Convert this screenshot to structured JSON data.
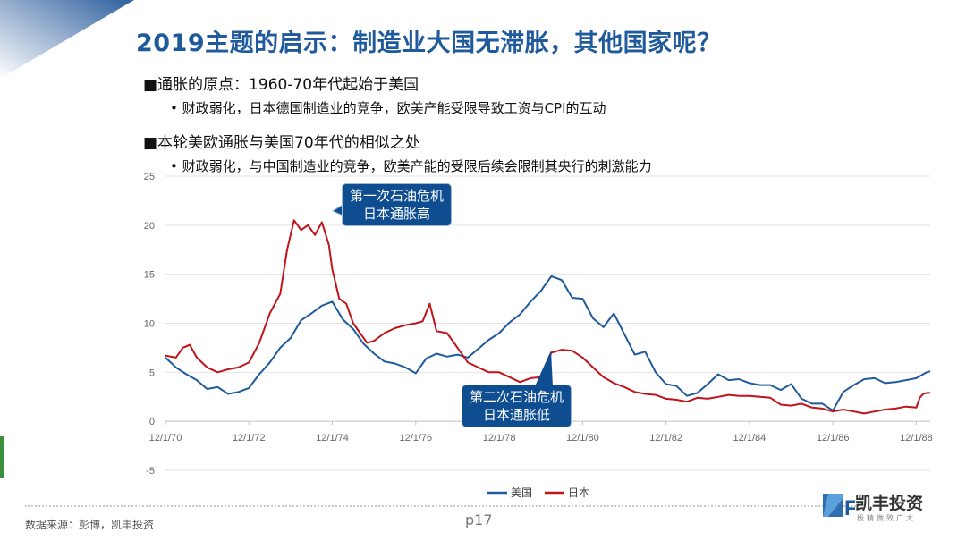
{
  "header": {
    "title": "2019主题的启示：制造业大国无滞胀，其他国家呢？"
  },
  "bullets": [
    {
      "main": "■通胀的原点：1960-70年代起始于美国",
      "sub": "• 财政弱化，日本德国制造业的竞争，欧美产能受限导致工资与CPI的互动"
    },
    {
      "main": "■本轮美欧通胀与美国70年代的相似之处",
      "sub": "• 财政弱化，与中国制造业的竞争，欧美产能的受限后续会限制其央行的刺激能力"
    }
  ],
  "callouts": {
    "first": [
      "第一次石油危机",
      "日本通胀高"
    ],
    "second": [
      "第二次石油危机",
      "日本通胀低"
    ]
  },
  "footer": {
    "source": "数据来源：彭博，凯丰投资",
    "page": "p17"
  },
  "logo": {
    "name": "凯丰投资",
    "tagline": "极精微致广大",
    "mark": "F"
  },
  "colors": {
    "title": "#1f5a9c",
    "us": "#1f5a9c",
    "japan": "#c0141b",
    "callout": "#0e4d8f"
  },
  "chart_data": {
    "type": "line",
    "ylim": [
      -5,
      25
    ],
    "yticks": [
      -5,
      0,
      5,
      10,
      15,
      20,
      25
    ],
    "xlim": [
      "1970-12",
      "1989-04"
    ],
    "xticks": [
      "12/1/70",
      "12/1/72",
      "12/1/74",
      "12/1/76",
      "12/1/78",
      "12/1/80",
      "12/1/82",
      "12/1/84",
      "12/1/86",
      "12/1/88"
    ],
    "legend_position": "bottom",
    "grid": "horizontal",
    "series": [
      {
        "name": "美国",
        "color": "#1f5a9c",
        "points": [
          [
            "1970-12",
            6.5
          ],
          [
            "1971-03",
            5.5
          ],
          [
            "1971-06",
            4.8
          ],
          [
            "1971-09",
            4.2
          ],
          [
            "1971-12",
            3.3
          ],
          [
            "1972-03",
            3.5
          ],
          [
            "1972-06",
            2.8
          ],
          [
            "1972-09",
            3.0
          ],
          [
            "1972-12",
            3.4
          ],
          [
            "1973-03",
            4.8
          ],
          [
            "1973-06",
            6.0
          ],
          [
            "1973-09",
            7.5
          ],
          [
            "1973-12",
            8.5
          ],
          [
            "1974-03",
            10.3
          ],
          [
            "1974-06",
            11.0
          ],
          [
            "1974-09",
            11.8
          ],
          [
            "1974-12",
            12.2
          ],
          [
            "1975-03",
            10.4
          ],
          [
            "1975-06",
            9.4
          ],
          [
            "1975-09",
            7.9
          ],
          [
            "1975-12",
            6.9
          ],
          [
            "1976-03",
            6.1
          ],
          [
            "1976-06",
            5.9
          ],
          [
            "1976-09",
            5.5
          ],
          [
            "1976-12",
            4.9
          ],
          [
            "1977-03",
            6.4
          ],
          [
            "1977-06",
            6.9
          ],
          [
            "1977-09",
            6.6
          ],
          [
            "1977-12",
            6.8
          ],
          [
            "1978-03",
            6.5
          ],
          [
            "1978-06",
            7.4
          ],
          [
            "1978-09",
            8.3
          ],
          [
            "1978-12",
            9.0
          ],
          [
            "1979-03",
            10.1
          ],
          [
            "1979-06",
            10.9
          ],
          [
            "1979-09",
            12.2
          ],
          [
            "1979-12",
            13.3
          ],
          [
            "1980-03",
            14.8
          ],
          [
            "1980-06",
            14.4
          ],
          [
            "1980-09",
            12.6
          ],
          [
            "1980-12",
            12.5
          ],
          [
            "1981-03",
            10.5
          ],
          [
            "1981-06",
            9.6
          ],
          [
            "1981-09",
            11.0
          ],
          [
            "1981-12",
            8.9
          ],
          [
            "1982-03",
            6.8
          ],
          [
            "1982-06",
            7.1
          ],
          [
            "1982-09",
            5.0
          ],
          [
            "1982-12",
            3.8
          ],
          [
            "1983-03",
            3.6
          ],
          [
            "1983-06",
            2.6
          ],
          [
            "1983-09",
            2.9
          ],
          [
            "1983-12",
            3.8
          ],
          [
            "1984-03",
            4.8
          ],
          [
            "1984-06",
            4.2
          ],
          [
            "1984-09",
            4.3
          ],
          [
            "1984-12",
            3.9
          ],
          [
            "1985-03",
            3.7
          ],
          [
            "1985-06",
            3.7
          ],
          [
            "1985-09",
            3.2
          ],
          [
            "1985-12",
            3.8
          ],
          [
            "1986-03",
            2.3
          ],
          [
            "1986-06",
            1.8
          ],
          [
            "1986-09",
            1.8
          ],
          [
            "1986-12",
            1.1
          ],
          [
            "1987-03",
            3.0
          ],
          [
            "1987-06",
            3.7
          ],
          [
            "1987-09",
            4.3
          ],
          [
            "1987-12",
            4.4
          ],
          [
            "1988-03",
            3.9
          ],
          [
            "1988-06",
            4.0
          ],
          [
            "1988-09",
            4.2
          ],
          [
            "1988-12",
            4.4
          ],
          [
            "1989-03",
            5.0
          ],
          [
            "1989-04",
            5.1
          ]
        ]
      },
      {
        "name": "日本",
        "color": "#c0141b",
        "points": [
          [
            "1970-12",
            6.7
          ],
          [
            "1971-03",
            6.5
          ],
          [
            "1971-05",
            7.5
          ],
          [
            "1971-07",
            7.8
          ],
          [
            "1971-09",
            6.5
          ],
          [
            "1971-12",
            5.5
          ],
          [
            "1972-03",
            5.0
          ],
          [
            "1972-06",
            5.3
          ],
          [
            "1972-09",
            5.5
          ],
          [
            "1972-12",
            6.0
          ],
          [
            "1973-03",
            8.0
          ],
          [
            "1973-06",
            11.0
          ],
          [
            "1973-09",
            13.0
          ],
          [
            "1973-11",
            17.5
          ],
          [
            "1974-01",
            20.5
          ],
          [
            "1974-03",
            19.5
          ],
          [
            "1974-05",
            20.0
          ],
          [
            "1974-07",
            19.0
          ],
          [
            "1974-09",
            20.3
          ],
          [
            "1974-11",
            18.0
          ],
          [
            "1974-12",
            15.5
          ],
          [
            "1975-02",
            12.5
          ],
          [
            "1975-04",
            12.0
          ],
          [
            "1975-06",
            10.0
          ],
          [
            "1975-08",
            9.0
          ],
          [
            "1975-10",
            8.0
          ],
          [
            "1975-12",
            8.2
          ],
          [
            "1976-03",
            9.0
          ],
          [
            "1976-06",
            9.5
          ],
          [
            "1976-09",
            9.8
          ],
          [
            "1976-12",
            10.0
          ],
          [
            "1977-02",
            10.2
          ],
          [
            "1977-04",
            12.0
          ],
          [
            "1977-06",
            9.2
          ],
          [
            "1977-09",
            9.0
          ],
          [
            "1977-12",
            7.5
          ],
          [
            "1978-03",
            6.0
          ],
          [
            "1978-06",
            5.5
          ],
          [
            "1978-09",
            5.0
          ],
          [
            "1978-12",
            5.0
          ],
          [
            "1979-03",
            4.5
          ],
          [
            "1979-06",
            4.0
          ],
          [
            "1979-09",
            4.4
          ],
          [
            "1979-12",
            4.5
          ],
          [
            "1980-03",
            7.0
          ],
          [
            "1980-06",
            7.3
          ],
          [
            "1980-09",
            7.2
          ],
          [
            "1980-12",
            6.5
          ],
          [
            "1981-03",
            5.5
          ],
          [
            "1981-06",
            4.5
          ],
          [
            "1981-09",
            3.9
          ],
          [
            "1981-12",
            3.5
          ],
          [
            "1982-03",
            3.0
          ],
          [
            "1982-06",
            2.8
          ],
          [
            "1982-09",
            2.7
          ],
          [
            "1982-12",
            2.3
          ],
          [
            "1983-03",
            2.2
          ],
          [
            "1983-06",
            2.0
          ],
          [
            "1983-09",
            2.4
          ],
          [
            "1983-12",
            2.3
          ],
          [
            "1984-03",
            2.5
          ],
          [
            "1984-06",
            2.7
          ],
          [
            "1984-09",
            2.6
          ],
          [
            "1984-12",
            2.6
          ],
          [
            "1985-03",
            2.5
          ],
          [
            "1985-06",
            2.4
          ],
          [
            "1985-09",
            1.7
          ],
          [
            "1985-12",
            1.6
          ],
          [
            "1986-03",
            1.8
          ],
          [
            "1986-06",
            1.4
          ],
          [
            "1986-09",
            1.3
          ],
          [
            "1986-12",
            1.0
          ],
          [
            "1987-03",
            1.2
          ],
          [
            "1987-06",
            1.0
          ],
          [
            "1987-09",
            0.8
          ],
          [
            "1987-12",
            1.0
          ],
          [
            "1988-03",
            1.2
          ],
          [
            "1988-06",
            1.3
          ],
          [
            "1988-09",
            1.5
          ],
          [
            "1988-12",
            1.4
          ],
          [
            "1989-01",
            2.4
          ],
          [
            "1989-02",
            2.8
          ],
          [
            "1989-03",
            2.9
          ],
          [
            "1989-04",
            2.9
          ]
        ]
      }
    ]
  }
}
